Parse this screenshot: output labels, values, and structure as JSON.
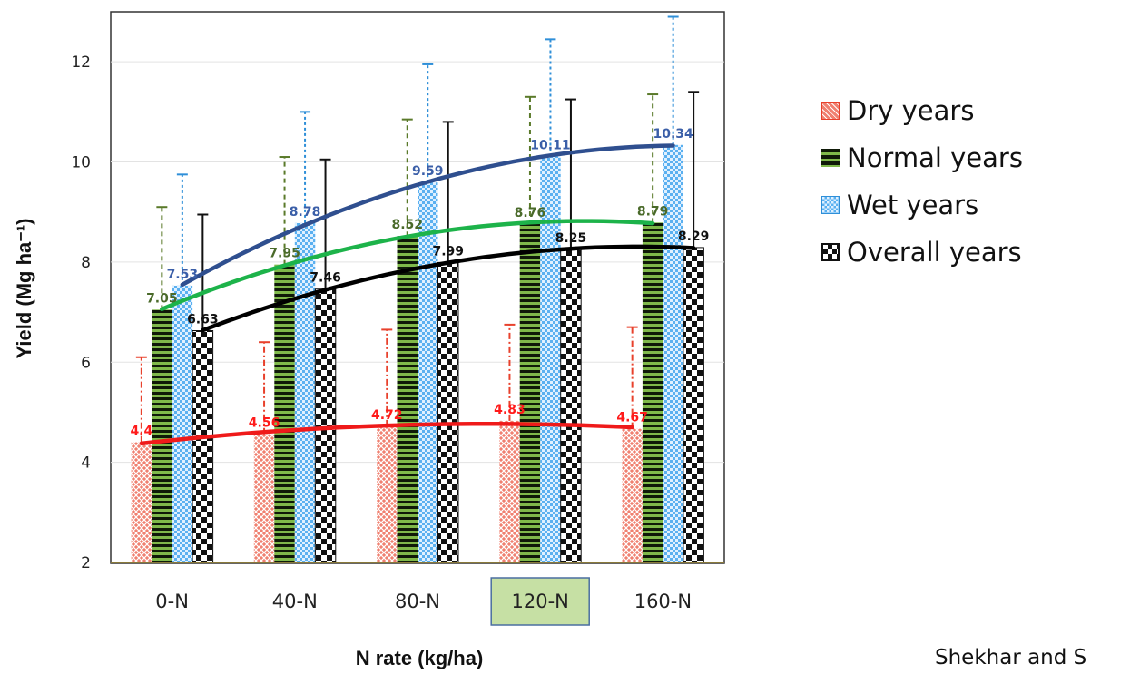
{
  "chart_data": {
    "type": "bar",
    "categories": [
      "0-N",
      "40-N",
      "80-N",
      "120-N",
      "160-N"
    ],
    "highlighted_category": "120-N",
    "xlabel": "N rate (kg/ha)",
    "ylabel": "Yield (Mg ha⁻¹)",
    "ylim": [
      2,
      13
    ],
    "yticks": [
      2,
      4,
      6,
      8,
      10,
      12
    ],
    "legend_position": "right",
    "series": [
      {
        "name": "Dry years",
        "values": [
          4.4,
          4.56,
          4.72,
          4.83,
          4.67
        ],
        "labels": [
          "4.4",
          "4.56",
          "4.72",
          "4.83",
          "4.67"
        ],
        "error_upper": [
          6.1,
          6.4,
          6.65,
          6.75,
          6.7
        ],
        "color": "#e8412c",
        "label_color": "#ff1a1a",
        "error_style": "dash-dot"
      },
      {
        "name": "Normal years",
        "values": [
          7.05,
          7.95,
          8.52,
          8.76,
          8.79
        ],
        "labels": [
          "7.05",
          "7.95",
          "8.52",
          "8.76",
          "8.79"
        ],
        "error_upper": [
          9.1,
          10.1,
          10.85,
          11.3,
          11.35
        ],
        "color": "#5a7a2a",
        "label_color": "#4a6a2a",
        "error_style": "dashed"
      },
      {
        "name": "Wet years",
        "values": [
          7.53,
          8.78,
          9.59,
          10.11,
          10.34
        ],
        "labels": [
          "7.53",
          "8.78",
          "9.59",
          "10.11",
          "10.34"
        ],
        "error_upper": [
          9.75,
          11.0,
          11.95,
          12.45,
          12.9
        ],
        "color": "#2f8fd8",
        "label_color": "#3b5fa8",
        "error_style": "dotted"
      },
      {
        "name": "Overall years",
        "values": [
          6.63,
          7.46,
          7.99,
          8.25,
          8.29
        ],
        "labels": [
          "6.63",
          "7.46",
          "7.99",
          "8.25",
          "8.29"
        ],
        "error_upper": [
          8.95,
          10.05,
          10.8,
          11.25,
          11.4
        ],
        "color": "#111111",
        "label_color": "#111111",
        "error_style": "solid"
      }
    ],
    "trendlines": [
      {
        "series": "Dry years",
        "color": "#ef1a1a"
      },
      {
        "series": "Normal years",
        "color": "#1db34a"
      },
      {
        "series": "Wet years",
        "color": "#2f4f8f"
      },
      {
        "series": "Overall years",
        "color": "#000000"
      }
    ]
  },
  "credit": "Shekhar and S"
}
